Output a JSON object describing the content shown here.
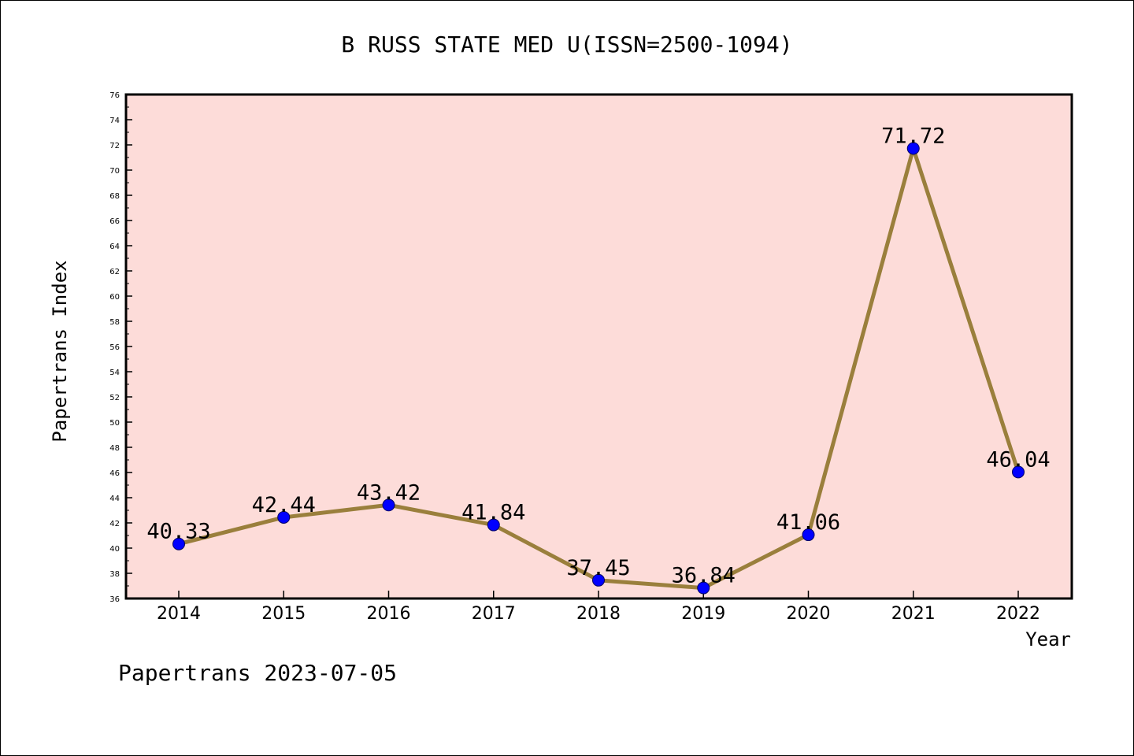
{
  "chart_data": {
    "type": "line",
    "title": "B RUSS STATE MED U(ISSN=2500-1094)",
    "xlabel": "Year",
    "ylabel": "Papertrans Index",
    "categories": [
      "2014",
      "2015",
      "2016",
      "2017",
      "2018",
      "2019",
      "2020",
      "2021",
      "2022"
    ],
    "series": [
      {
        "values": [
          40.33,
          42.44,
          43.42,
          41.84,
          37.45,
          36.84,
          41.06,
          71.72,
          46.04
        ],
        "data_labels": [
          "40.33",
          "42.44",
          "43.42",
          "41.84",
          "37.45",
          "36.84",
          "41.06",
          "71.72",
          "46.04"
        ]
      }
    ],
    "ylim": [
      36,
      76
    ],
    "yticks": [
      "36",
      "38",
      "40",
      "42",
      "44",
      "46",
      "48",
      "50",
      "52",
      "54",
      "56",
      "58",
      "60",
      "62",
      "64",
      "66",
      "68",
      "70",
      "72",
      "74",
      "76"
    ],
    "grid": false,
    "legend": "none",
    "colors": {
      "plot_background": "#fddcd9",
      "line": "#9a7f3c",
      "marker_fill": "#0000ff",
      "marker_edge": "#000066"
    }
  },
  "footer": "Papertrans 2023-07-05"
}
